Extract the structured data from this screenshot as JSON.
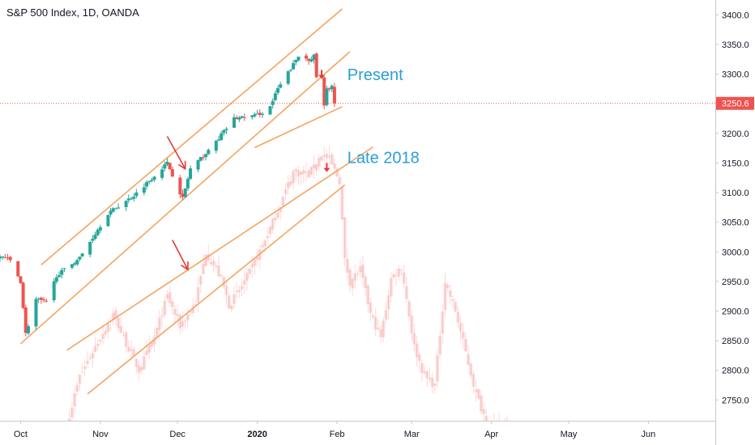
{
  "chart_data": {
    "type": "candlestick",
    "title": "S&P 500 Index, 1D, OANDA",
    "y_axis": {
      "ylim": [
        2715,
        3425
      ],
      "ticks": [
        3400.0,
        3350.0,
        3300.0,
        3250.0,
        3200.0,
        3150.0,
        3100.0,
        3050.0,
        3000.0,
        2950.0,
        2900.0,
        2850.0,
        2800.0,
        2750.0
      ],
      "tick_labels": [
        "3400.0",
        "3350.0",
        "3300.0",
        "3250.0",
        "3200.0",
        "3150.0",
        "3100.0",
        "3050.0",
        "3000.0",
        "2950.0",
        "2900.0",
        "2850.0",
        "2800.0",
        "2750.0"
      ]
    },
    "x_axis": {
      "xlim": [
        "2019-09-23",
        "2020-06-27"
      ],
      "ticks": [
        {
          "date": "2019-10-01",
          "label": "Oct",
          "bold": false
        },
        {
          "date": "2019-11-01",
          "label": "Nov",
          "bold": false
        },
        {
          "date": "2019-12-01",
          "label": "Dec",
          "bold": false
        },
        {
          "date": "2020-01-01",
          "label": "2020",
          "bold": true
        },
        {
          "date": "2020-02-01",
          "label": "Feb",
          "bold": false
        },
        {
          "date": "2020-03-01",
          "label": "Mar",
          "bold": false
        },
        {
          "date": "2020-04-01",
          "label": "Apr",
          "bold": false
        },
        {
          "date": "2020-05-01",
          "label": "May",
          "bold": false
        },
        {
          "date": "2020-06-01",
          "label": "Jun",
          "bold": false
        }
      ]
    },
    "last_price": {
      "value": 3250.6,
      "label": "3250.6",
      "color": "#ef5350"
    },
    "up_color": "#26a69a",
    "down_color": "#ef5350",
    "channel_color": "#f4a460",
    "arrow_color": "#e53935",
    "present_series": {
      "name": "Present",
      "key_points": [
        {
          "date": "2019-09-23",
          "value": 2995
        },
        {
          "date": "2019-09-27",
          "value": 2985
        },
        {
          "date": "2019-10-01",
          "value": 2950
        },
        {
          "date": "2019-10-03",
          "value": 2862
        },
        {
          "date": "2019-10-07",
          "value": 2920
        },
        {
          "date": "2019-10-11",
          "value": 2915
        },
        {
          "date": "2019-10-15",
          "value": 2960
        },
        {
          "date": "2019-10-24",
          "value": 2990
        },
        {
          "date": "2019-11-04",
          "value": 3065
        },
        {
          "date": "2019-11-14",
          "value": 3095
        },
        {
          "date": "2019-11-27",
          "value": 3150
        },
        {
          "date": "2019-12-03",
          "value": 3090
        },
        {
          "date": "2019-12-06",
          "value": 3140
        },
        {
          "date": "2019-12-13",
          "value": 3170
        },
        {
          "date": "2019-12-23",
          "value": 3225
        },
        {
          "date": "2019-12-31",
          "value": 3230
        },
        {
          "date": "2020-01-03",
          "value": 3235
        },
        {
          "date": "2020-01-06",
          "value": 3245
        },
        {
          "date": "2020-01-09",
          "value": 3275
        },
        {
          "date": "2020-01-17",
          "value": 3330
        },
        {
          "date": "2020-01-21",
          "value": 3325
        },
        {
          "date": "2020-01-23",
          "value": 3330
        },
        {
          "date": "2020-01-24",
          "value": 3295
        },
        {
          "date": "2020-01-27",
          "value": 3245
        },
        {
          "date": "2020-01-28",
          "value": 3275
        },
        {
          "date": "2020-01-29",
          "value": 3272
        },
        {
          "date": "2020-01-30",
          "value": 3283
        },
        {
          "date": "2020-01-31",
          "value": 3250.6
        }
      ]
    },
    "late_2018_series": {
      "name": "Late 2018",
      "key_points": [
        {
          "date": "2019-10-20",
          "value": 2725
        },
        {
          "date": "2019-10-24",
          "value": 2790
        },
        {
          "date": "2019-10-30",
          "value": 2840
        },
        {
          "date": "2019-11-06",
          "value": 2895
        },
        {
          "date": "2019-11-10",
          "value": 2855
        },
        {
          "date": "2019-11-16",
          "value": 2800
        },
        {
          "date": "2019-11-22",
          "value": 2855
        },
        {
          "date": "2019-11-27",
          "value": 2925
        },
        {
          "date": "2019-12-02",
          "value": 2875
        },
        {
          "date": "2019-12-08",
          "value": 2915
        },
        {
          "date": "2019-12-12",
          "value": 3000
        },
        {
          "date": "2019-12-18",
          "value": 2955
        },
        {
          "date": "2019-12-21",
          "value": 2910
        },
        {
          "date": "2019-12-25",
          "value": 2935
        },
        {
          "date": "2019-12-29",
          "value": 2965
        },
        {
          "date": "2020-01-03",
          "value": 3010
        },
        {
          "date": "2020-01-09",
          "value": 3070
        },
        {
          "date": "2020-01-15",
          "value": 3135
        },
        {
          "date": "2020-01-21",
          "value": 3130
        },
        {
          "date": "2020-01-26",
          "value": 3165
        },
        {
          "date": "2020-01-29",
          "value": 3155
        },
        {
          "date": "2020-02-02",
          "value": 3120
        },
        {
          "date": "2020-02-04",
          "value": 2985
        },
        {
          "date": "2020-02-06",
          "value": 2950
        },
        {
          "date": "2020-02-10",
          "value": 2970
        },
        {
          "date": "2020-02-14",
          "value": 2895
        },
        {
          "date": "2020-02-18",
          "value": 2855
        },
        {
          "date": "2020-02-22",
          "value": 2955
        },
        {
          "date": "2020-02-26",
          "value": 2975
        },
        {
          "date": "2020-03-02",
          "value": 2840
        },
        {
          "date": "2020-03-06",
          "value": 2790
        },
        {
          "date": "2020-03-10",
          "value": 2775
        },
        {
          "date": "2020-03-14",
          "value": 2950
        },
        {
          "date": "2020-03-18",
          "value": 2900
        },
        {
          "date": "2020-03-22",
          "value": 2830
        },
        {
          "date": "2020-03-26",
          "value": 2760
        },
        {
          "date": "2020-03-30",
          "value": 2715
        },
        {
          "date": "2020-04-03",
          "value": 2705
        },
        {
          "date": "2020-04-07",
          "value": 2715
        }
      ]
    },
    "channels": [
      {
        "name": "present-channel-upper",
        "from": {
          "date": "2019-10-09",
          "value": 2978
        },
        "to": {
          "date": "2020-02-03",
          "value": 3410
        }
      },
      {
        "name": "present-channel-lower",
        "from": {
          "date": "2019-10-01",
          "value": 2845
        },
        "to": {
          "date": "2020-02-06",
          "value": 3338
        }
      },
      {
        "name": "present-channel-base",
        "from": {
          "date": "2019-12-31",
          "value": 3176
        },
        "to": {
          "date": "2020-02-03",
          "value": 3245
        }
      },
      {
        "name": "late2018-channel-upper",
        "from": {
          "date": "2019-10-19",
          "value": 2834
        },
        "to": {
          "date": "2020-02-15",
          "value": 3177
        }
      },
      {
        "name": "late2018-channel-lower",
        "from": {
          "date": "2019-10-27",
          "value": 2760
        },
        "to": {
          "date": "2020-02-04",
          "value": 3113
        }
      }
    ],
    "arrows": [
      {
        "name": "arrow-present-dec",
        "from": {
          "date": "2019-11-27",
          "value": 3195
        },
        "to": {
          "date": "2019-12-04",
          "value": 3140
        },
        "size": "large"
      },
      {
        "name": "arrow-late2018-dec",
        "from": {
          "date": "2019-11-29",
          "value": 3020
        },
        "to": {
          "date": "2019-12-05",
          "value": 2970
        },
        "size": "large"
      },
      {
        "name": "arrow-present-jan",
        "from": {
          "date": "2020-01-26",
          "value": 3307
        },
        "to": {
          "date": "2020-01-26",
          "value": 3293
        },
        "size": "small"
      },
      {
        "name": "arrow-late2018-jan",
        "from": {
          "date": "2020-01-28",
          "value": 3150
        },
        "to": {
          "date": "2020-01-28",
          "value": 3136
        },
        "size": "small"
      }
    ],
    "annotations": [
      {
        "name": "present-label",
        "text": "Present",
        "date": "2020-02-05",
        "value": 3290
      },
      {
        "name": "late-2018-label",
        "text": "Late 2018",
        "date": "2020-02-05",
        "value": 3150
      }
    ]
  }
}
